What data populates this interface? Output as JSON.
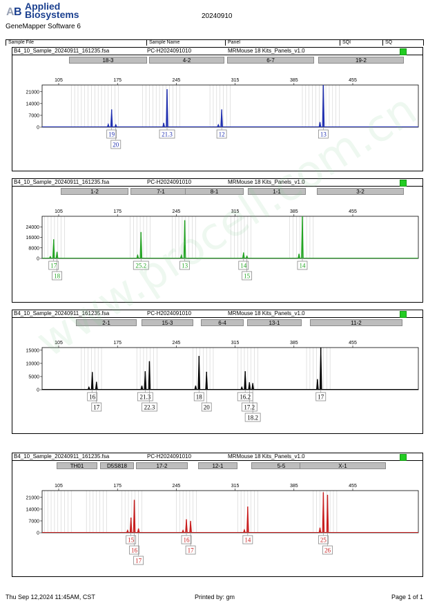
{
  "header": {
    "brand_line1": "Applied",
    "brand_line2": "Biosystems",
    "software": "GeneMapper Software 6",
    "run_date": "20240910",
    "columns": [
      "Sample File",
      "Sample Name",
      "Panel",
      "SQI",
      "SQ"
    ]
  },
  "footer": {
    "printed_at": "Thu Sep 12,2024 11:45AM, CST",
    "printed_by": "Printed by: gm",
    "page": "Page 1 of 1"
  },
  "watermark": "www.procell.com.cn",
  "colors": {
    "blue": "#1f2fb0",
    "green": "#23a423",
    "black": "#000000",
    "red": "#c81e1e",
    "sq": "#22cc22"
  },
  "chart_data": [
    {
      "type": "line",
      "sample_file": "B4_10_Sample_20240911_161235.fsa",
      "sample_name": "PC-H2024091010",
      "panel": "MRMouse 18 Kits_Panels_v1.0",
      "color": "#1f2fb0",
      "markers": [
        "18-3",
        "4-2",
        "6-7",
        "19-2"
      ],
      "x_ticks": [
        105,
        175,
        245,
        315,
        385,
        455
      ],
      "xlim": [
        65,
        545
      ],
      "ylim": [
        0,
        25000
      ],
      "y_ticks": [
        0,
        7000,
        14000,
        21000
      ],
      "peaks": [
        {
          "x": 168,
          "y": 10500
        },
        {
          "x": 164,
          "y": 1800
        },
        {
          "x": 173,
          "y": 1500
        },
        {
          "x": 234,
          "y": 22500
        },
        {
          "x": 230,
          "y": 2500
        },
        {
          "x": 299,
          "y": 10500
        },
        {
          "x": 295,
          "y": 1500
        },
        {
          "x": 420,
          "y": 25000
        },
        {
          "x": 416,
          "y": 3000
        }
      ],
      "alleles": [
        {
          "label": "19",
          "x": 168,
          "row": 0
        },
        {
          "label": "20",
          "x": 173,
          "row": 1
        },
        {
          "label": "21.3",
          "x": 234,
          "row": 0
        },
        {
          "label": "12",
          "x": 299,
          "row": 0
        },
        {
          "label": "13",
          "x": 420,
          "row": 0
        }
      ]
    },
    {
      "type": "line",
      "sample_file": "B4_10_Sample_20240911_161235.fsa",
      "sample_name": "PC-H2024091010",
      "panel": "MRMouse 18 Kits_Panels_v1.0",
      "color": "#23a423",
      "markers": [
        "1-2",
        "7-1",
        "8-1",
        "1-1",
        "3-2"
      ],
      "x_ticks": [
        105,
        175,
        245,
        315,
        385,
        455
      ],
      "xlim": [
        65,
        545
      ],
      "ylim": [
        0,
        32000
      ],
      "y_ticks": [
        0,
        8000,
        16000,
        24000
      ],
      "peaks": [
        {
          "x": 99,
          "y": 14500
        },
        {
          "x": 103,
          "y": 5000
        },
        {
          "x": 95,
          "y": 1500
        },
        {
          "x": 203,
          "y": 20000
        },
        {
          "x": 199,
          "y": 2500
        },
        {
          "x": 255,
          "y": 29000
        },
        {
          "x": 251,
          "y": 2500
        },
        {
          "x": 325,
          "y": 4500
        },
        {
          "x": 329,
          "y": 1800
        },
        {
          "x": 395,
          "y": 32000
        },
        {
          "x": 391,
          "y": 3500
        }
      ],
      "alleles": [
        {
          "label": "17",
          "x": 99,
          "row": 0
        },
        {
          "label": "18",
          "x": 103,
          "row": 1
        },
        {
          "label": "25.2",
          "x": 203,
          "row": 0
        },
        {
          "label": "13",
          "x": 255,
          "row": 0
        },
        {
          "label": "14",
          "x": 325,
          "row": 0
        },
        {
          "label": "15",
          "x": 329,
          "row": 1
        },
        {
          "label": "14",
          "x": 395,
          "row": 0
        }
      ]
    },
    {
      "type": "line",
      "sample_file": "B4_10_Sample_20240911_161235.fsa",
      "sample_name": "PC-H2024091010",
      "panel": "MRMouse 18 Kits_Panels_v1.0",
      "color": "#000000",
      "markers": [
        "2-1",
        "15-3",
        "6-4",
        "13-1",
        "11-2"
      ],
      "x_ticks": [
        105,
        175,
        245,
        315,
        385,
        455
      ],
      "xlim": [
        65,
        545
      ],
      "ylim": [
        0,
        16000
      ],
      "y_ticks": [
        0,
        5000,
        10000,
        15000
      ],
      "peaks": [
        {
          "x": 145,
          "y": 6700
        },
        {
          "x": 150,
          "y": 3000
        },
        {
          "x": 141,
          "y": 1000
        },
        {
          "x": 208,
          "y": 7000
        },
        {
          "x": 213,
          "y": 10800
        },
        {
          "x": 204,
          "y": 1500
        },
        {
          "x": 272,
          "y": 12800
        },
        {
          "x": 281,
          "y": 6800
        },
        {
          "x": 268,
          "y": 1500
        },
        {
          "x": 327,
          "y": 7000
        },
        {
          "x": 332,
          "y": 2800
        },
        {
          "x": 336,
          "y": 2500
        },
        {
          "x": 323,
          "y": 1000
        },
        {
          "x": 417,
          "y": 16000
        },
        {
          "x": 413,
          "y": 4000
        }
      ],
      "alleles": [
        {
          "label": "16",
          "x": 145,
          "row": 0
        },
        {
          "label": "17",
          "x": 150,
          "row": 1
        },
        {
          "label": "21.3",
          "x": 208,
          "row": 0
        },
        {
          "label": "22.3",
          "x": 213,
          "row": 1
        },
        {
          "label": "18",
          "x": 272,
          "row": 0
        },
        {
          "label": "20",
          "x": 281,
          "row": 1
        },
        {
          "label": "16.2",
          "x": 327,
          "row": 0
        },
        {
          "label": "17.2",
          "x": 332,
          "row": 1
        },
        {
          "label": "18.2",
          "x": 336,
          "row": 2
        },
        {
          "label": "17",
          "x": 417,
          "row": 0
        }
      ]
    },
    {
      "type": "line",
      "sample_file": "B4_10_Sample_20240911_161235.fsa",
      "sample_name": "PC-H2024091010",
      "panel": "MRMouse 18 Kits_Panels_v1.0",
      "color": "#c81e1e",
      "markers": [
        "TH01",
        "D5S818",
        "17-2",
        "12-1",
        "5-5",
        "X-1"
      ],
      "x_ticks": [
        105,
        175,
        245,
        315,
        385,
        455
      ],
      "xlim": [
        65,
        545
      ],
      "ylim": [
        0,
        25000
      ],
      "y_ticks": [
        0,
        7000,
        14000,
        21000
      ],
      "peaks": [
        {
          "x": 191,
          "y": 9000
        },
        {
          "x": 195,
          "y": 19500
        },
        {
          "x": 200,
          "y": 2500
        },
        {
          "x": 187,
          "y": 1500
        },
        {
          "x": 257,
          "y": 8000
        },
        {
          "x": 262,
          "y": 7000
        },
        {
          "x": 253,
          "y": 1500
        },
        {
          "x": 330,
          "y": 15500
        },
        {
          "x": 326,
          "y": 1800
        },
        {
          "x": 420,
          "y": 24000
        },
        {
          "x": 425,
          "y": 22500
        },
        {
          "x": 416,
          "y": 3000
        }
      ],
      "alleles": [
        {
          "label": "15",
          "x": 191,
          "row": 0
        },
        {
          "label": "16",
          "x": 195,
          "row": 1
        },
        {
          "label": "17",
          "x": 200,
          "row": 2
        },
        {
          "label": "16",
          "x": 257,
          "row": 0
        },
        {
          "label": "17",
          "x": 262,
          "row": 1
        },
        {
          "label": "14",
          "x": 330,
          "row": 0
        },
        {
          "label": "25",
          "x": 420,
          "row": 0
        },
        {
          "label": "26",
          "x": 425,
          "row": 1
        }
      ]
    }
  ]
}
